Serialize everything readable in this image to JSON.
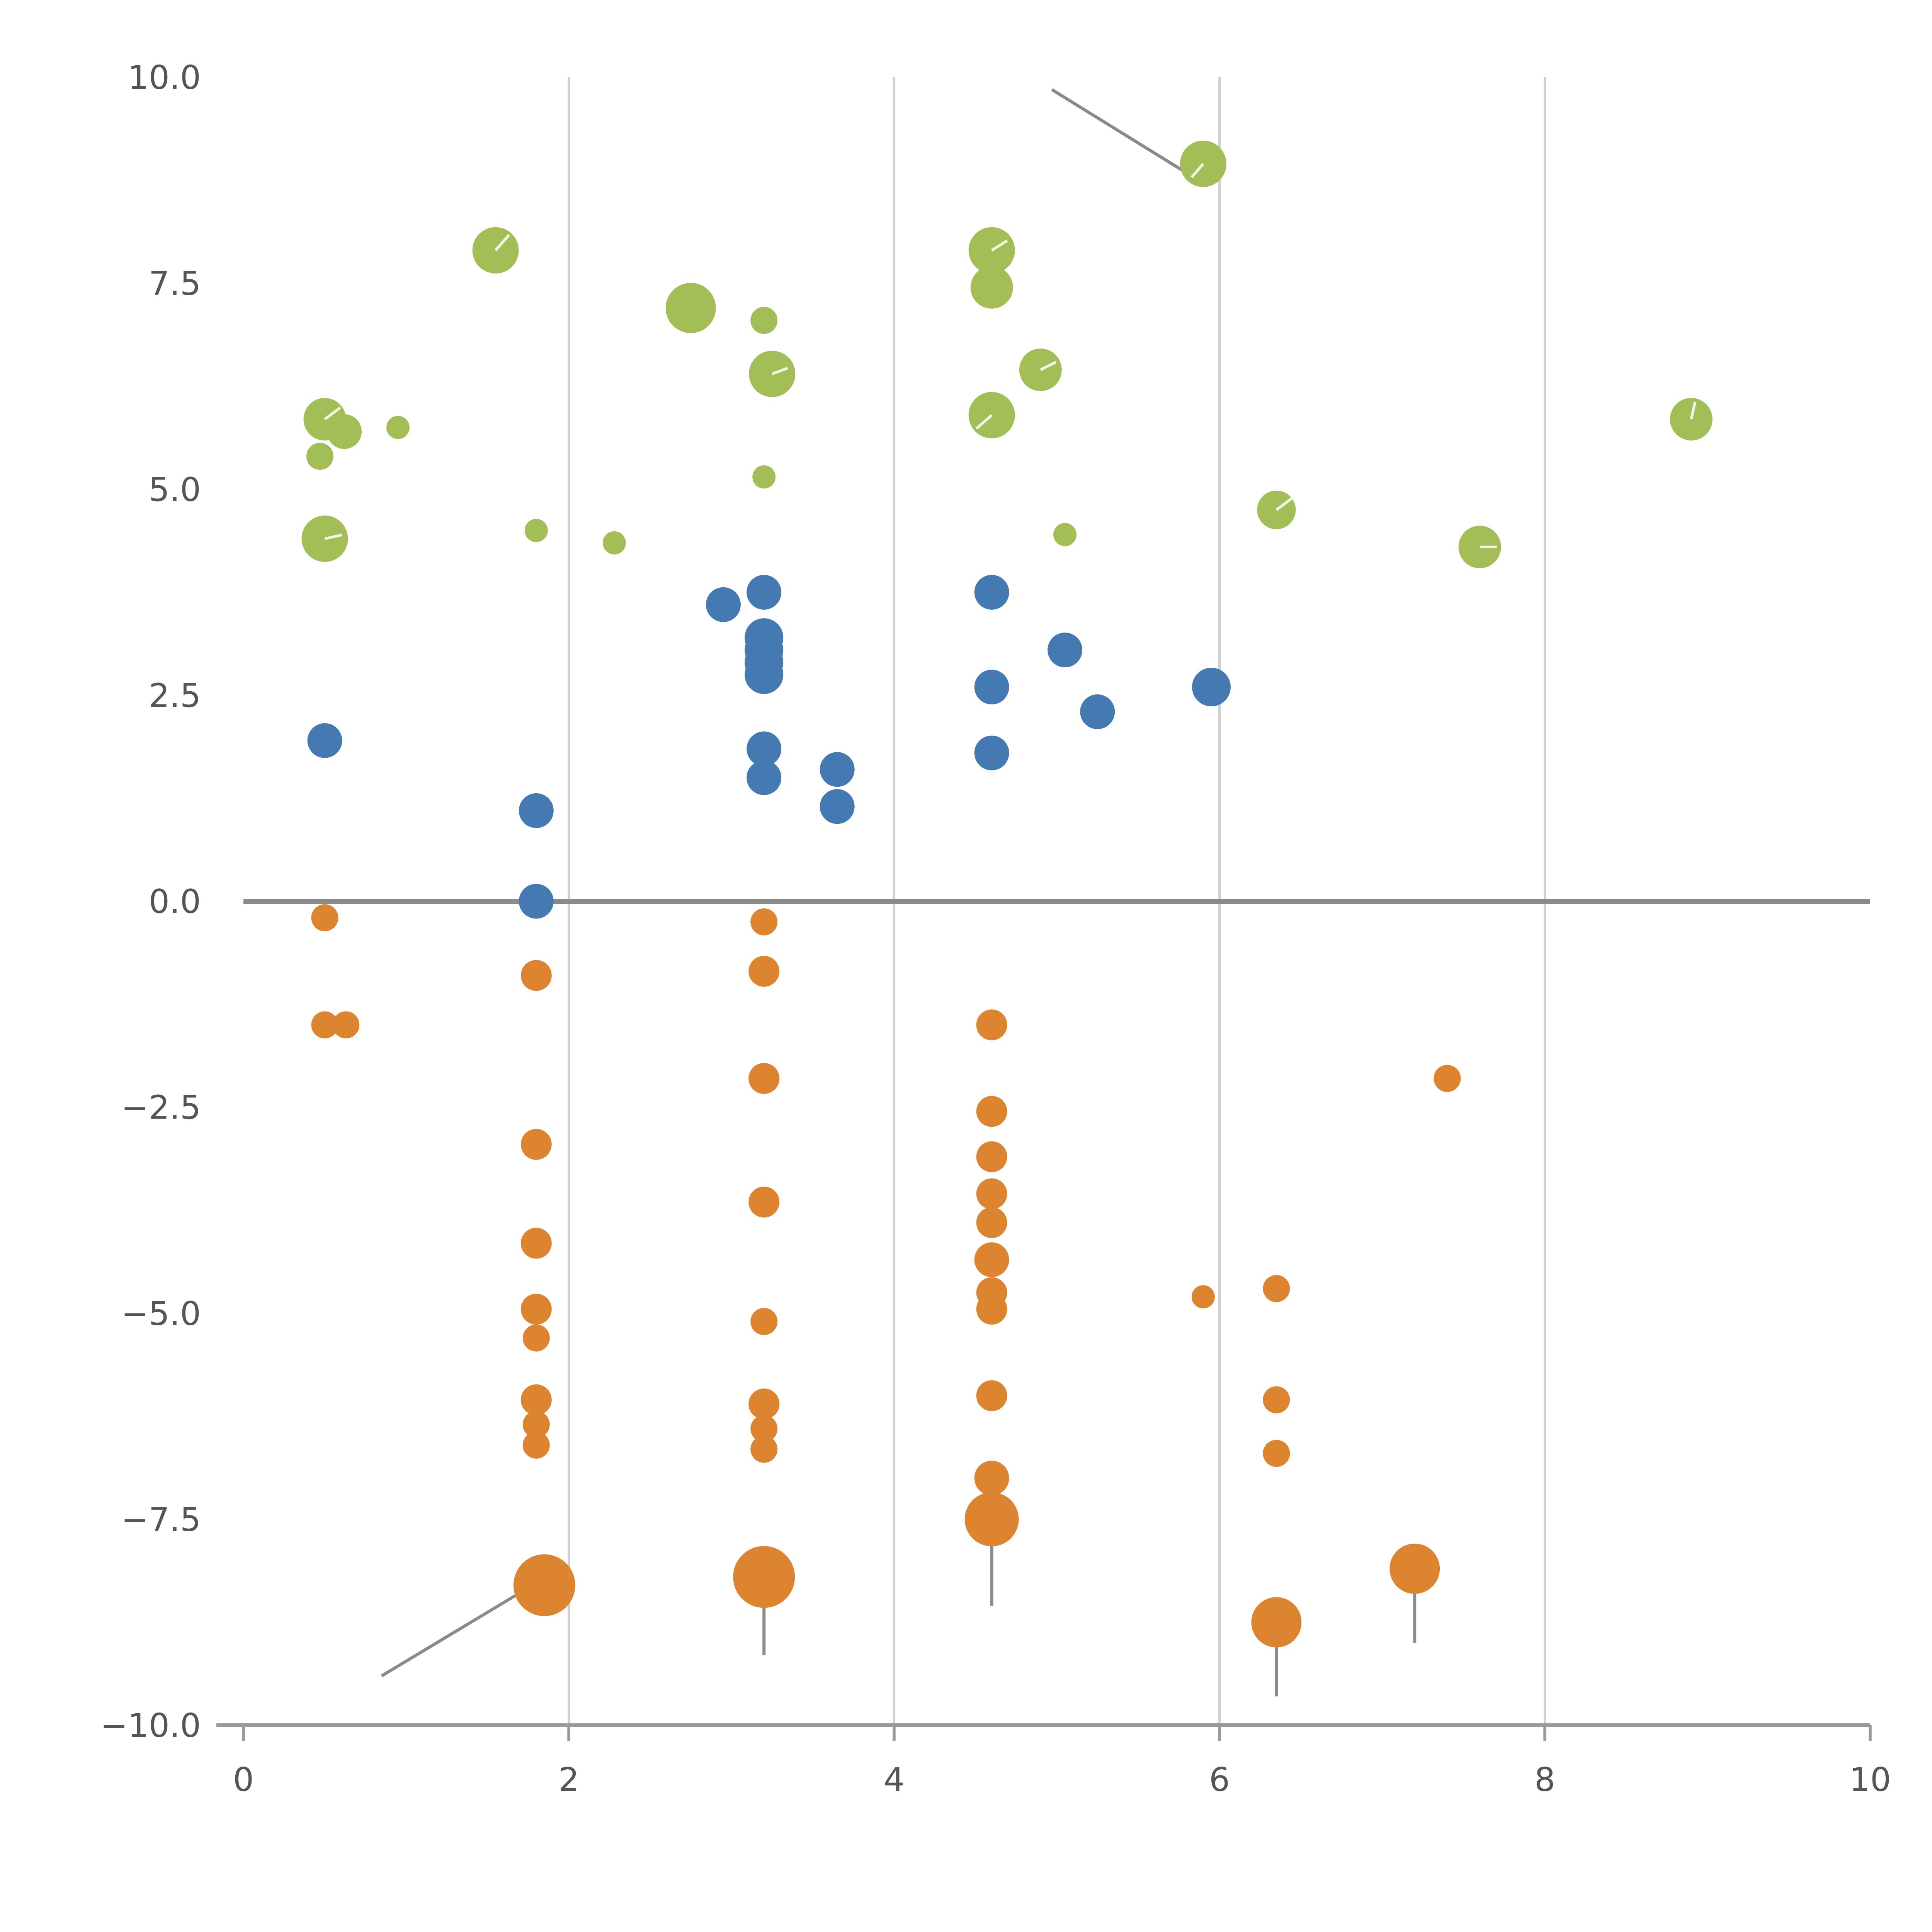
{
  "chart_data": {
    "type": "scatter",
    "title": "",
    "xlabel": "",
    "ylabel": "",
    "xlim": [
      0,
      10
    ],
    "ylim": [
      -10,
      10
    ],
    "x_ticks": [
      0,
      2,
      4,
      6,
      8,
      10
    ],
    "x_tick_labels": [
      "0",
      "2",
      "4",
      "6",
      "8",
      "10"
    ],
    "y_ticks": [
      10,
      7.5,
      5,
      2.5,
      0,
      -2.5,
      -5,
      -7.5,
      -10
    ],
    "y_tick_labels": [
      "10.0",
      "7.5",
      "5.0",
      "2.5",
      "0.0",
      "−2.5",
      "−5.0",
      "−7.5",
      "−10.0"
    ],
    "grid": {
      "vertical_at": [
        2,
        4,
        6,
        8
      ],
      "zero_line_y": 0,
      "legend": "none"
    },
    "colors": {
      "grid": "#cfcfcf",
      "zero_line": "#8a8a8a",
      "axis": "#9a9a9a",
      "annotation": "#8a8a8a",
      "tick_label": "#555555",
      "green": "#a3be57",
      "blue": "#4579b2",
      "orange": "#dd8431"
    },
    "series": [
      {
        "name": "green-bubbles",
        "color": "#a3be57",
        "points": [
          [
            1.55,
            7.9,
            12,
            [
              7,
              -8
            ]
          ],
          [
            2.75,
            7.2,
            13
          ],
          [
            3.2,
            7.05,
            7
          ],
          [
            3.25,
            6.4,
            12,
            [
              8,
              -3
            ]
          ],
          [
            4.6,
            7.9,
            12,
            [
              8,
              -5
            ]
          ],
          [
            4.6,
            7.45,
            11
          ],
          [
            4.9,
            6.45,
            11,
            [
              8,
              -4
            ]
          ],
          [
            4.6,
            5.9,
            12,
            [
              -8,
              7
            ]
          ],
          [
            5.9,
            8.95,
            12,
            [
              -6,
              7
            ]
          ],
          [
            0.5,
            5.85,
            11,
            [
              8,
              -6
            ]
          ],
          [
            0.62,
            5.7,
            9
          ],
          [
            0.95,
            5.75,
            6
          ],
          [
            0.47,
            5.4,
            7
          ],
          [
            0.5,
            4.4,
            12,
            [
              9,
              -2
            ]
          ],
          [
            1.8,
            4.5,
            6
          ],
          [
            2.28,
            4.35,
            6
          ],
          [
            3.2,
            5.15,
            6
          ],
          [
            5.05,
            4.45,
            6
          ],
          [
            6.35,
            4.75,
            10,
            [
              8,
              -6
            ]
          ],
          [
            7.6,
            4.3,
            11,
            [
              9,
              0
            ]
          ],
          [
            8.9,
            5.85,
            11,
            [
              2,
              -9
            ]
          ]
        ]
      },
      {
        "name": "blue-dots",
        "color": "#4579b2",
        "points": [
          [
            0.5,
            1.95,
            9
          ],
          [
            1.8,
            1.1,
            9
          ],
          [
            1.8,
            0.0,
            9
          ],
          [
            2.95,
            3.6,
            9
          ],
          [
            3.2,
            3.75,
            9
          ],
          [
            3.2,
            3.2,
            10
          ],
          [
            3.2,
            3.05,
            10
          ],
          [
            3.2,
            2.9,
            10
          ],
          [
            3.2,
            2.75,
            10
          ],
          [
            3.2,
            1.85,
            9
          ],
          [
            3.2,
            1.5,
            9
          ],
          [
            3.65,
            1.6,
            9
          ],
          [
            3.65,
            1.15,
            9
          ],
          [
            4.6,
            3.75,
            9
          ],
          [
            4.6,
            2.6,
            9
          ],
          [
            4.6,
            1.8,
            9
          ],
          [
            5.05,
            3.05,
            9
          ],
          [
            5.25,
            2.3,
            9
          ],
          [
            5.95,
            2.6,
            10
          ]
        ]
      },
      {
        "name": "orange-dots",
        "color": "#dd8431",
        "points": [
          [
            0.5,
            -0.2,
            7
          ],
          [
            0.5,
            -1.5,
            7
          ],
          [
            0.63,
            -1.5,
            7
          ],
          [
            1.8,
            -0.9,
            8
          ],
          [
            1.8,
            -2.95,
            8
          ],
          [
            1.8,
            -4.15,
            8
          ],
          [
            1.8,
            -4.95,
            8
          ],
          [
            1.8,
            -5.3,
            7
          ],
          [
            1.8,
            -6.05,
            8
          ],
          [
            1.8,
            -6.35,
            7
          ],
          [
            1.8,
            -6.6,
            7
          ],
          [
            1.85,
            -8.3,
            16
          ],
          [
            3.2,
            -0.25,
            7
          ],
          [
            3.2,
            -0.85,
            8
          ],
          [
            3.2,
            -2.15,
            8
          ],
          [
            3.2,
            -3.65,
            8
          ],
          [
            3.2,
            -5.1,
            7
          ],
          [
            3.2,
            -6.1,
            8
          ],
          [
            3.2,
            -6.4,
            7
          ],
          [
            3.2,
            -6.65,
            7
          ],
          [
            3.2,
            -8.2,
            16
          ],
          [
            4.6,
            -1.5,
            8
          ],
          [
            4.6,
            -2.55,
            8
          ],
          [
            4.6,
            -3.1,
            8
          ],
          [
            4.6,
            -3.55,
            8
          ],
          [
            4.6,
            -3.9,
            8
          ],
          [
            4.6,
            -4.35,
            9
          ],
          [
            4.6,
            -4.75,
            8
          ],
          [
            4.6,
            -4.95,
            8
          ],
          [
            4.6,
            -6.0,
            8
          ],
          [
            4.6,
            -7.0,
            9
          ],
          [
            4.6,
            -7.5,
            14
          ],
          [
            5.9,
            -4.8,
            6
          ],
          [
            6.35,
            -4.7,
            7
          ],
          [
            6.35,
            -6.05,
            7
          ],
          [
            6.35,
            -6.7,
            7
          ],
          [
            6.35,
            -8.75,
            13
          ],
          [
            7.4,
            -2.15,
            7
          ],
          [
            7.2,
            -8.1,
            13
          ]
        ]
      }
    ],
    "annotations": [
      {
        "x1": 4.97,
        "y1": 9.85,
        "x2": 5.83,
        "y2": 8.8
      },
      {
        "x1": 0.85,
        "y1": -9.4,
        "x2": 1.82,
        "y2": -8.25
      },
      {
        "x1": 3.2,
        "y1": -8.2,
        "x2": 3.2,
        "y2": -9.15
      },
      {
        "x1": 4.6,
        "y1": -7.55,
        "x2": 4.6,
        "y2": -8.55
      },
      {
        "x1": 6.35,
        "y1": -8.8,
        "x2": 6.35,
        "y2": -9.65
      },
      {
        "x1": 7.2,
        "y1": -8.15,
        "x2": 7.2,
        "y2": -9.0
      }
    ]
  }
}
